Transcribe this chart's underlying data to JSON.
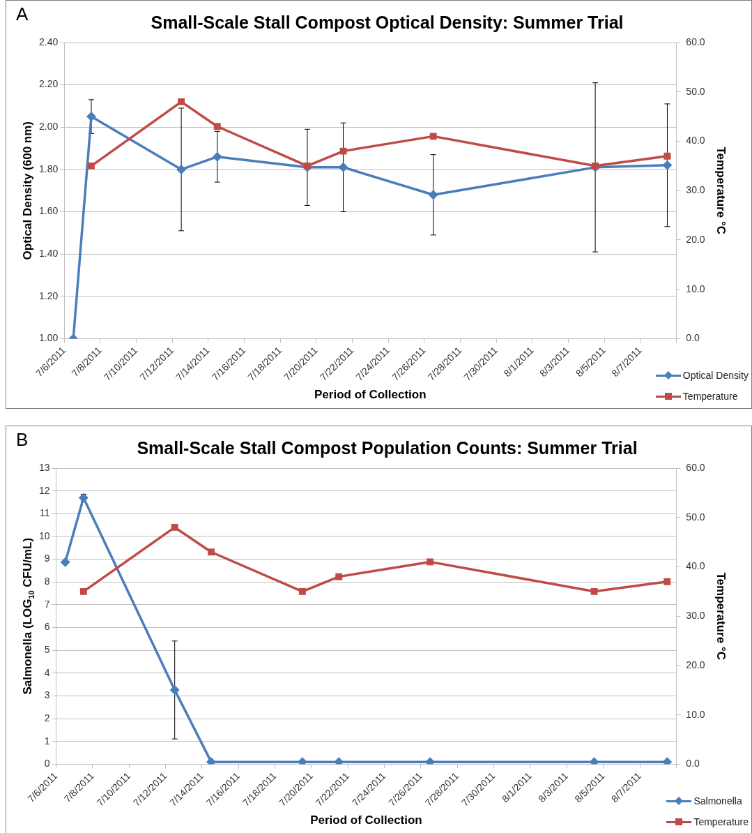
{
  "chart_data": [
    {
      "type": "line",
      "title": "Small-Scale Stall Compost Optical Density: Summer Trial",
      "xlabel": "Period of Collection",
      "ylabel": "Optical Density (600 nm)",
      "y2label": "Temperature °C",
      "annotations": [
        "A"
      ],
      "xlim": [
        "2011-07-06",
        "2011-08-09"
      ],
      "xticks": [
        {
          "value": "2011-07-06",
          "label": "7/6/2011"
        },
        {
          "value": "2011-07-08",
          "label": "7/8/2011"
        },
        {
          "value": "2011-07-10",
          "label": "7/10/2011"
        },
        {
          "value": "2011-07-12",
          "label": "7/12/2011"
        },
        {
          "value": "2011-07-14",
          "label": "7/14/2011"
        },
        {
          "value": "2011-07-16",
          "label": "7/16/2011"
        },
        {
          "value": "2011-07-18",
          "label": "7/18/2011"
        },
        {
          "value": "2011-07-20",
          "label": "7/20/2011"
        },
        {
          "value": "2011-07-22",
          "label": "7/22/2011"
        },
        {
          "value": "2011-07-24",
          "label": "7/24/2011"
        },
        {
          "value": "2011-07-26",
          "label": "7/26/2011"
        },
        {
          "value": "2011-07-28",
          "label": "7/28/2011"
        },
        {
          "value": "2011-07-30",
          "label": "7/30/2011"
        },
        {
          "value": "2011-08-01",
          "label": "8/1/2011"
        },
        {
          "value": "2011-08-03",
          "label": "8/3/2011"
        },
        {
          "value": "2011-08-05",
          "label": "8/5/2011"
        },
        {
          "value": "2011-08-07",
          "label": "8/7/2011"
        },
        {
          "value": "2011-08-09",
          "label": null
        }
      ],
      "ylim": [
        1,
        2.4
      ],
      "yticks": [
        {
          "value": 1,
          "label": "1.00"
        },
        {
          "value": 1.2,
          "label": "1.20"
        },
        {
          "value": 1.4,
          "label": "1.40"
        },
        {
          "value": 1.6,
          "label": "1.60"
        },
        {
          "value": 1.8,
          "label": "1.80"
        },
        {
          "value": 2,
          "label": "2.00"
        },
        {
          "value": 2.2,
          "label": "2.20"
        },
        {
          "value": 2.4,
          "label": "2.40"
        }
      ],
      "y2lim": [
        0,
        60
      ],
      "y2ticks": [
        {
          "value": 0,
          "label": "0.0"
        },
        {
          "value": 10,
          "label": "10.0"
        },
        {
          "value": 20,
          "label": "20.0"
        },
        {
          "value": 30,
          "label": "30.0"
        },
        {
          "value": 40,
          "label": "40.0"
        },
        {
          "value": 50,
          "label": "50.0"
        },
        {
          "value": 60,
          "label": "60.0"
        }
      ],
      "grid": "y",
      "legend": "bottom right",
      "line_style": "solid",
      "series": [
        {
          "name": "Optical Density",
          "color": "#4a7ebb",
          "marker": "diamond",
          "x": [
            "2011-07-06T12:00",
            "2011-07-07T12:00",
            "2011-07-12T12:00",
            "2011-07-14T12:00",
            "2011-07-19T12:00",
            "2011-07-21T12:00",
            "2011-07-26T12:00",
            "2011-08-04T12:00",
            "2011-08-08T12:00"
          ],
          "values": [
            1.0,
            2.05,
            1.8,
            1.86,
            1.81,
            1.81,
            1.68,
            1.81,
            1.82
          ],
          "errors": [
            null,
            0.08,
            0.29,
            0.12,
            0.18,
            0.21,
            0.19,
            0.4,
            0.29
          ]
        },
        {
          "name": "Temperature",
          "color": "#be4b48",
          "marker": "square",
          "axis": "y2",
          "x": [
            "2011-07-07T12:00",
            "2011-07-12T12:00",
            "2011-07-14T12:00",
            "2011-07-19T12:00",
            "2011-07-21T12:00",
            "2011-07-26T12:00",
            "2011-08-04T12:00",
            "2011-08-08T12:00"
          ],
          "values": [
            35,
            48,
            43,
            35,
            38,
            41,
            35,
            37
          ]
        }
      ]
    },
    {
      "type": "line",
      "title": "Small-Scale Stall Compost Population Counts: Summer Trial",
      "xlabel": "Period of Collection",
      "ylabel": "Salmonella (LOG$_{10}$ CFU/mL)",
      "y2label": "Temperature °C",
      "annotations": [
        "B"
      ],
      "xlim": [
        "2011-07-06",
        "2011-08-09"
      ],
      "xticks": [
        {
          "value": "2011-07-06",
          "label": "7/6/2011"
        },
        {
          "value": "2011-07-08",
          "label": "7/8/2011"
        },
        {
          "value": "2011-07-10",
          "label": "7/10/2011"
        },
        {
          "value": "2011-07-12",
          "label": "7/12/2011"
        },
        {
          "value": "2011-07-14",
          "label": "7/14/2011"
        },
        {
          "value": "2011-07-16",
          "label": "7/16/2011"
        },
        {
          "value": "2011-07-18",
          "label": "7/18/2011"
        },
        {
          "value": "2011-07-20",
          "label": "7/20/2011"
        },
        {
          "value": "2011-07-22",
          "label": "7/22/2011"
        },
        {
          "value": "2011-07-24",
          "label": "7/24/2011"
        },
        {
          "value": "2011-07-26",
          "label": "7/26/2011"
        },
        {
          "value": "2011-07-28",
          "label": "7/28/2011"
        },
        {
          "value": "2011-07-30",
          "label": "7/30/2011"
        },
        {
          "value": "2011-08-01",
          "label": "8/1/2011"
        },
        {
          "value": "2011-08-03",
          "label": "8/3/2011"
        },
        {
          "value": "2011-08-05",
          "label": "8/5/2011"
        },
        {
          "value": "2011-08-07",
          "label": "8/7/2011"
        },
        {
          "value": "2011-08-09",
          "label": null
        }
      ],
      "ylim": [
        0,
        13
      ],
      "yticks": [
        0,
        1,
        2,
        3,
        4,
        5,
        6,
        7,
        8,
        9,
        10,
        11,
        12,
        13
      ],
      "y2lim": [
        0,
        60
      ],
      "y2ticks": [
        {
          "value": 0,
          "label": "0.0"
        },
        {
          "value": 10,
          "label": "10.0"
        },
        {
          "value": 20,
          "label": "20.0"
        },
        {
          "value": 30,
          "label": "30.0"
        },
        {
          "value": 40,
          "label": "40.0"
        },
        {
          "value": 50,
          "label": "50.0"
        },
        {
          "value": 60,
          "label": "60.0"
        }
      ],
      "grid": "y",
      "legend": "bottom right",
      "line_style": "solid",
      "series": [
        {
          "name": "Salmonella",
          "color": "#4a7ebb",
          "marker": "diamond",
          "x": [
            "2011-07-06T12:00",
            "2011-07-07T12:00",
            "2011-07-12T12:00",
            "2011-07-14T12:00",
            "2011-07-19T12:00",
            "2011-07-21T12:00",
            "2011-07-26T12:00",
            "2011-08-04T12:00",
            "2011-08-08T12:00"
          ],
          "values": [
            8.87,
            11.7,
            3.26,
            0.1,
            0.1,
            0.1,
            0.1,
            0.1,
            0.1
          ],
          "errors": [
            null,
            0.15,
            2.15,
            null,
            null,
            null,
            null,
            null,
            null
          ]
        },
        {
          "name": "Temperature",
          "color": "#be4b48",
          "marker": "square",
          "axis": "y2",
          "x": [
            "2011-07-07T12:00",
            "2011-07-12T12:00",
            "2011-07-14T12:00",
            "2011-07-19T12:00",
            "2011-07-21T12:00",
            "2011-07-26T12:00",
            "2011-08-04T12:00",
            "2011-08-08T12:00"
          ],
          "values": [
            35,
            48,
            43,
            35,
            38,
            41,
            35,
            37
          ]
        }
      ]
    }
  ]
}
